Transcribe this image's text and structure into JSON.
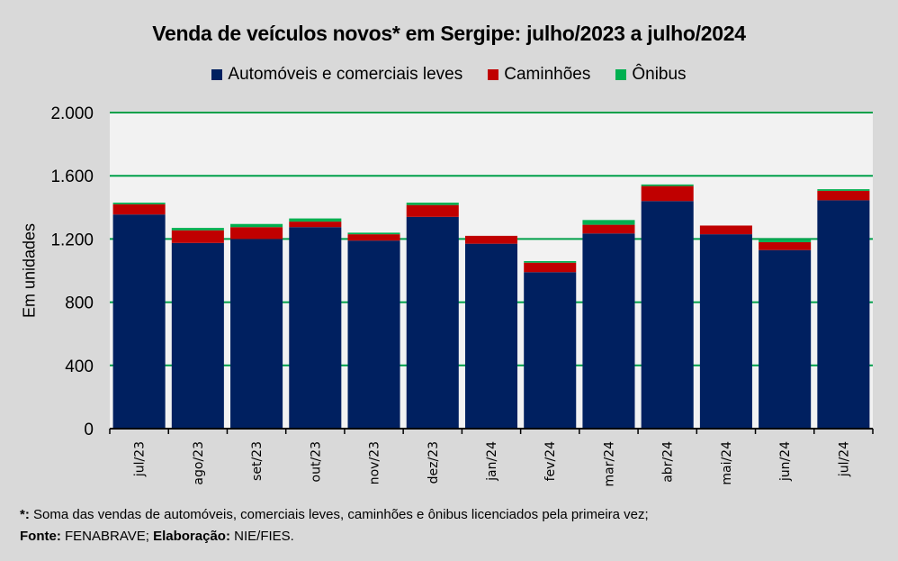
{
  "chart_data": {
    "type": "bar",
    "stacked": true,
    "title": "Venda de veículos novos* em Sergipe: julho/2023 a julho/2024",
    "xlabel": "",
    "ylabel": "Em unidades",
    "ylim": [
      0,
      2000
    ],
    "yticks": [
      0,
      400,
      800,
      1200,
      1600,
      2000
    ],
    "ytick_labels": [
      "0",
      "400",
      "800",
      "1.200",
      "1.600",
      "2.000"
    ],
    "grid": true,
    "legend_position": "top",
    "categories": [
      "jul/23",
      "ago/23",
      "set/23",
      "out/23",
      "nov/23",
      "dez/23",
      "jan/24",
      "fev/24",
      "mar/24",
      "abr/24",
      "mai/24",
      "jun/24",
      "jul/24"
    ],
    "series": [
      {
        "name": "Automóveis e comerciais leves",
        "color": "#002060",
        "values": [
          1355,
          1175,
          1200,
          1275,
          1190,
          1340,
          1170,
          990,
          1235,
          1440,
          1230,
          1130,
          1445
        ]
      },
      {
        "name": "Caminhões",
        "color": "#c00000",
        "values": [
          65,
          80,
          75,
          35,
          40,
          75,
          50,
          60,
          55,
          95,
          55,
          50,
          60
        ]
      },
      {
        "name": "Ônibus",
        "color": "#00b050",
        "values": [
          10,
          15,
          20,
          20,
          10,
          15,
          0,
          10,
          30,
          10,
          0,
          15,
          10
        ]
      }
    ]
  },
  "footnote": {
    "marker": "*:",
    "text": "Soma das vendas de automóveis, comerciais leves, caminhões e ônibus licenciados pela primeira vez;"
  },
  "source": {
    "label": "Fonte:",
    "value": "FENABRAVE;",
    "elab_label": "Elaboração:",
    "elab_value": "NIE/FIES."
  },
  "colors": {
    "plot_bg": "#f2f2f2",
    "grid": "#00a04a",
    "page_bg": "#d9d9d9"
  }
}
